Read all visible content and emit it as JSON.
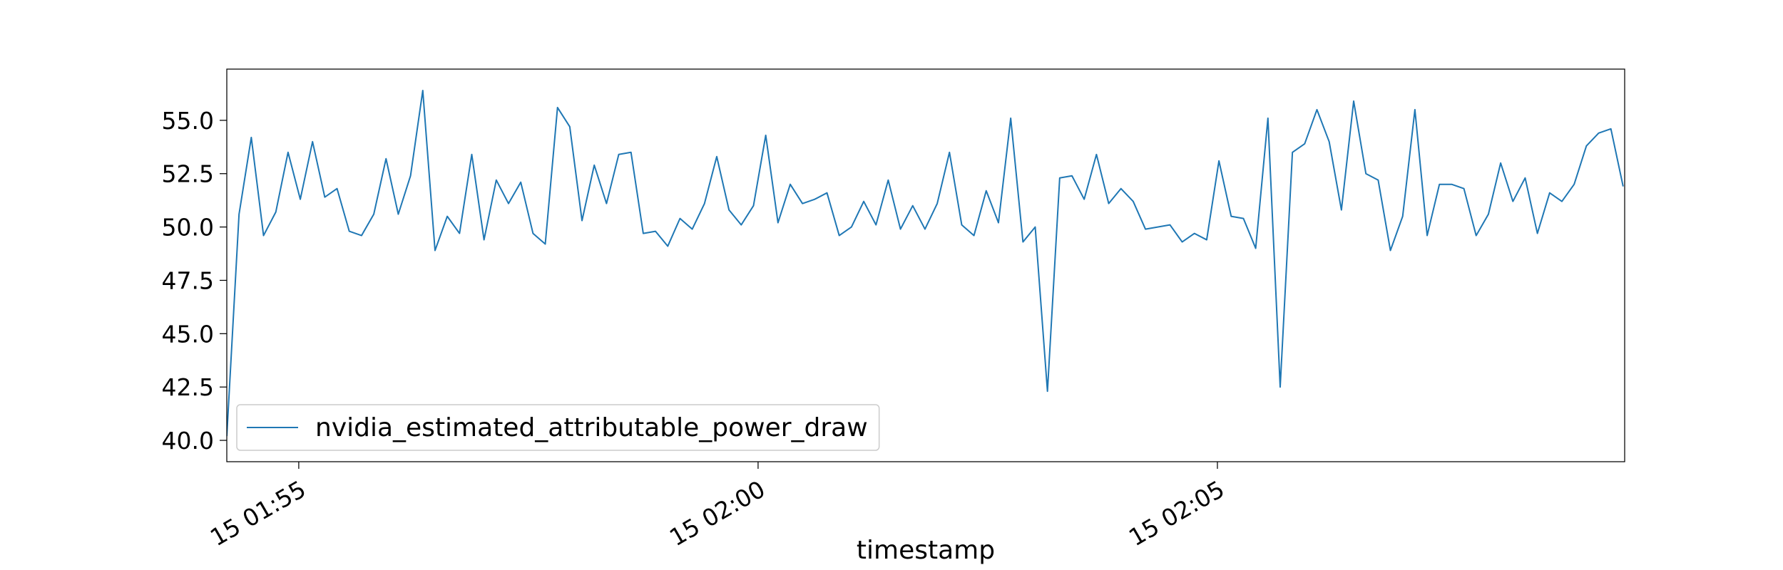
{
  "chart_data": {
    "type": "line",
    "title": "",
    "xlabel": "timestamp",
    "ylabel": "",
    "xlim": [
      "15 01:54:13",
      "15 02:09:26"
    ],
    "ylim": [
      39,
      57.4
    ],
    "x_ticks": [
      {
        "value": "15 01:55:00",
        "label": "15 01:55"
      },
      {
        "value": "15 02:00:00",
        "label": "15 02:00"
      },
      {
        "value": "15 02:05:00",
        "label": "15 02:05"
      }
    ],
    "y_ticks": [
      {
        "value": 40.0,
        "label": "40.0"
      },
      {
        "value": 42.5,
        "label": "42.5"
      },
      {
        "value": 45.0,
        "label": "45.0"
      },
      {
        "value": 47.5,
        "label": "47.5"
      },
      {
        "value": 50.0,
        "label": "50.0"
      },
      {
        "value": 52.5,
        "label": "52.5"
      },
      {
        "value": 55.0,
        "label": "55.0"
      }
    ],
    "grid": false,
    "legend": {
      "placement": "lower-left"
    },
    "series": [
      {
        "name": "nvidia_estimated_attributable_power_draw",
        "color": "#1f77b4",
        "sample_interval_seconds": 8,
        "x_start": "15 01:54:13",
        "values": [
          40.2,
          50.6,
          54.2,
          49.6,
          50.7,
          53.5,
          51.3,
          54.0,
          51.4,
          51.8,
          49.8,
          49.6,
          50.6,
          53.2,
          50.6,
          52.4,
          56.4,
          48.9,
          50.5,
          49.7,
          53.4,
          49.4,
          52.2,
          51.1,
          52.1,
          49.7,
          49.2,
          55.6,
          54.7,
          50.3,
          52.9,
          51.1,
          53.4,
          53.5,
          49.7,
          49.8,
          49.1,
          50.4,
          49.9,
          51.1,
          53.3,
          50.8,
          50.1,
          51.0,
          54.3,
          50.2,
          52.0,
          51.1,
          51.3,
          51.6,
          49.6,
          50.0,
          51.2,
          50.1,
          52.2,
          49.9,
          51.0,
          49.9,
          51.1,
          53.5,
          50.1,
          49.6,
          51.7,
          50.2,
          55.1,
          49.3,
          50.0,
          42.3,
          52.3,
          52.4,
          51.3,
          53.4,
          51.1,
          51.8,
          51.2,
          49.9,
          50.0,
          50.1,
          49.3,
          49.7,
          49.4,
          53.1,
          50.5,
          50.4,
          49.0,
          55.1,
          42.5,
          53.5,
          53.9,
          55.5,
          54.0,
          50.8,
          55.9,
          52.5,
          52.2,
          48.9,
          50.5,
          55.5,
          49.6,
          52.0,
          52.0,
          51.8,
          49.6,
          50.6,
          53.0,
          51.2,
          52.3,
          49.7,
          51.6,
          51.2,
          52.0,
          53.8,
          54.4,
          54.6,
          51.9
        ]
      }
    ]
  }
}
